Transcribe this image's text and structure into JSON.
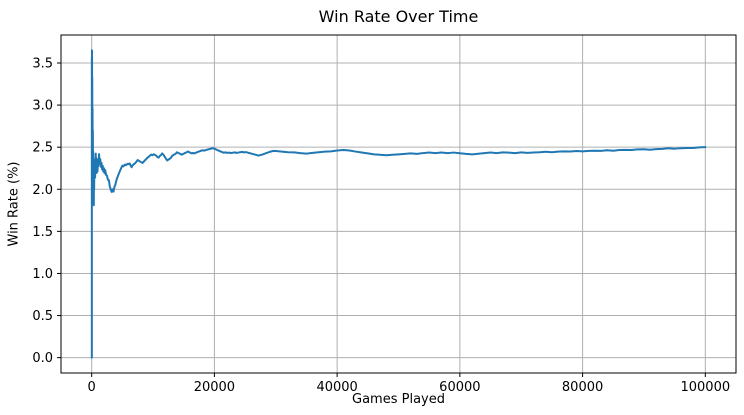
{
  "colors": {
    "line": "#1f77b4",
    "grid": "#b0b0b0",
    "spine": "#000000",
    "text": "#000000",
    "background": "#ffffff"
  },
  "chart_data": {
    "type": "line",
    "title": "Win Rate Over Time",
    "xlabel": "Games Played",
    "ylabel": "Win Rate (%)",
    "grid": true,
    "legend_position": "none",
    "xlim": [
      -5000,
      105000
    ],
    "ylim": [
      -0.1825,
      3.8325
    ],
    "x_ticks": [
      0,
      20000,
      40000,
      60000,
      80000,
      100000
    ],
    "x_tick_labels": [
      "0",
      "20000",
      "40000",
      "60000",
      "80000",
      "100000"
    ],
    "y_ticks": [
      0.0,
      0.5,
      1.0,
      1.5,
      2.0,
      2.5,
      3.0,
      3.5
    ],
    "y_tick_labels": [
      "0.0",
      "0.5",
      "1.0",
      "1.5",
      "2.0",
      "2.5",
      "3.0",
      "3.5"
    ],
    "series": [
      {
        "name": "win_rate",
        "points": [
          [
            0,
            0.0
          ],
          [
            25,
            0.0
          ],
          [
            28,
            3.571
          ],
          [
            40,
            2.5
          ],
          [
            55,
            3.65
          ],
          [
            70,
            2.857
          ],
          [
            90,
            3.333
          ],
          [
            115,
            2.609
          ],
          [
            135,
            2.963
          ],
          [
            160,
            2.5
          ],
          [
            185,
            2.703
          ],
          [
            215,
            2.326
          ],
          [
            245,
            2.449
          ],
          [
            280,
            2.143
          ],
          [
            310,
            2.258
          ],
          [
            345,
            1.81
          ],
          [
            365,
            2.192
          ],
          [
            400,
            2.0
          ],
          [
            430,
            2.326
          ],
          [
            470,
            2.128
          ],
          [
            510,
            2.353
          ],
          [
            560,
            2.143
          ],
          [
            610,
            2.295
          ],
          [
            660,
            2.424
          ],
          [
            710,
            2.254
          ],
          [
            760,
            2.368
          ],
          [
            820,
            2.195
          ],
          [
            880,
            2.273
          ],
          [
            950,
            2.211
          ],
          [
            1020,
            2.353
          ],
          [
            1100,
            2.273
          ],
          [
            1200,
            2.417
          ],
          [
            1300,
            2.308
          ],
          [
            1400,
            2.357
          ],
          [
            1500,
            2.267
          ],
          [
            1600,
            2.313
          ],
          [
            1700,
            2.235
          ],
          [
            1800,
            2.278
          ],
          [
            1900,
            2.211
          ],
          [
            2000,
            2.25
          ],
          [
            2100,
            2.19
          ],
          [
            2200,
            2.227
          ],
          [
            2350,
            2.17
          ],
          [
            2500,
            2.16
          ],
          [
            2650,
            2.113
          ],
          [
            2800,
            2.107
          ],
          [
            2950,
            2.034
          ],
          [
            3100,
            2.0
          ],
          [
            3250,
            1.969
          ],
          [
            3400,
            2.0
          ],
          [
            3550,
            1.972
          ],
          [
            3700,
            2.027
          ],
          [
            3850,
            2.052
          ],
          [
            4000,
            2.1
          ],
          [
            4200,
            2.143
          ],
          [
            4400,
            2.182
          ],
          [
            4600,
            2.217
          ],
          [
            4800,
            2.25
          ],
          [
            5000,
            2.28
          ],
          [
            5150,
            2.272
          ],
          [
            5300,
            2.283
          ],
          [
            5450,
            2.294
          ],
          [
            5600,
            2.286
          ],
          [
            5750,
            2.296
          ],
          [
            5900,
            2.305
          ],
          [
            6050,
            2.298
          ],
          [
            6200,
            2.306
          ],
          [
            6350,
            2.283
          ],
          [
            6500,
            2.262
          ],
          [
            6650,
            2.281
          ],
          [
            6800,
            2.294
          ],
          [
            6950,
            2.302
          ],
          [
            7100,
            2.31
          ],
          [
            7300,
            2.329
          ],
          [
            7500,
            2.347
          ],
          [
            7700,
            2.338
          ],
          [
            7900,
            2.329
          ],
          [
            8100,
            2.321
          ],
          [
            8300,
            2.313
          ],
          [
            8500,
            2.329
          ],
          [
            8700,
            2.345
          ],
          [
            8900,
            2.36
          ],
          [
            9100,
            2.374
          ],
          [
            9300,
            2.387
          ],
          [
            9500,
            2.4
          ],
          [
            9700,
            2.412
          ],
          [
            9900,
            2.404
          ],
          [
            10100,
            2.416
          ],
          [
            10300,
            2.408
          ],
          [
            10500,
            2.4
          ],
          [
            10700,
            2.383
          ],
          [
            10900,
            2.376
          ],
          [
            11100,
            2.396
          ],
          [
            11300,
            2.407
          ],
          [
            11500,
            2.426
          ],
          [
            11700,
            2.41
          ],
          [
            11900,
            2.387
          ],
          [
            12100,
            2.364
          ],
          [
            12300,
            2.342
          ],
          [
            12500,
            2.352
          ],
          [
            12700,
            2.362
          ],
          [
            12900,
            2.372
          ],
          [
            13100,
            2.397
          ],
          [
            13300,
            2.406
          ],
          [
            13500,
            2.415
          ],
          [
            13700,
            2.423
          ],
          [
            13900,
            2.439
          ],
          [
            14100,
            2.432
          ],
          [
            14300,
            2.425
          ],
          [
            14500,
            2.418
          ],
          [
            14700,
            2.411
          ],
          [
            14900,
            2.419
          ],
          [
            15100,
            2.427
          ],
          [
            15300,
            2.434
          ],
          [
            15500,
            2.441
          ],
          [
            15700,
            2.448
          ],
          [
            15900,
            2.44
          ],
          [
            16100,
            2.433
          ],
          [
            16300,
            2.426
          ],
          [
            16500,
            2.432
          ],
          [
            16700,
            2.426
          ],
          [
            16900,
            2.432
          ],
          [
            17100,
            2.438
          ],
          [
            17300,
            2.443
          ],
          [
            17500,
            2.449
          ],
          [
            17700,
            2.454
          ],
          [
            17900,
            2.459
          ],
          [
            18100,
            2.464
          ],
          [
            18300,
            2.459
          ],
          [
            18500,
            2.463
          ],
          [
            18700,
            2.468
          ],
          [
            18900,
            2.472
          ],
          [
            19100,
            2.476
          ],
          [
            19300,
            2.48
          ],
          [
            19500,
            2.484
          ],
          [
            19700,
            2.487
          ],
          [
            20000,
            2.482
          ],
          [
            20300,
            2.472
          ],
          [
            20600,
            2.462
          ],
          [
            20900,
            2.452
          ],
          [
            21200,
            2.443
          ],
          [
            21500,
            2.434
          ],
          [
            21800,
            2.438
          ],
          [
            22100,
            2.432
          ],
          [
            22400,
            2.436
          ],
          [
            22700,
            2.43
          ],
          [
            23000,
            2.434
          ],
          [
            23300,
            2.438
          ],
          [
            23600,
            2.432
          ],
          [
            23900,
            2.436
          ],
          [
            24200,
            2.44
          ],
          [
            24500,
            2.444
          ],
          [
            24800,
            2.438
          ],
          [
            25100,
            2.442
          ],
          [
            25400,
            2.436
          ],
          [
            25700,
            2.43
          ],
          [
            26000,
            2.424
          ],
          [
            26300,
            2.418
          ],
          [
            26600,
            2.412
          ],
          [
            26900,
            2.406
          ],
          [
            27200,
            2.4
          ],
          [
            27500,
            2.406
          ],
          [
            27800,
            2.412
          ],
          [
            28100,
            2.42
          ],
          [
            28400,
            2.428
          ],
          [
            28700,
            2.436
          ],
          [
            29000,
            2.444
          ],
          [
            29300,
            2.45
          ],
          [
            29600,
            2.456
          ],
          [
            30000,
            2.455
          ],
          [
            31000,
            2.447
          ],
          [
            32000,
            2.44
          ],
          [
            33000,
            2.438
          ],
          [
            34000,
            2.43
          ],
          [
            35000,
            2.424
          ],
          [
            36000,
            2.432
          ],
          [
            37000,
            2.44
          ],
          [
            38000,
            2.447
          ],
          [
            39000,
            2.45
          ],
          [
            40000,
            2.46
          ],
          [
            41000,
            2.467
          ],
          [
            42000,
            2.46
          ],
          [
            43000,
            2.448
          ],
          [
            44000,
            2.437
          ],
          [
            45000,
            2.426
          ],
          [
            46000,
            2.415
          ],
          [
            47000,
            2.41
          ],
          [
            48000,
            2.404
          ],
          [
            49000,
            2.41
          ],
          [
            50000,
            2.415
          ],
          [
            51000,
            2.42
          ],
          [
            52000,
            2.427
          ],
          [
            53000,
            2.42
          ],
          [
            54000,
            2.43
          ],
          [
            55000,
            2.437
          ],
          [
            56000,
            2.43
          ],
          [
            57000,
            2.437
          ],
          [
            58000,
            2.43
          ],
          [
            59000,
            2.436
          ],
          [
            60000,
            2.428
          ],
          [
            61000,
            2.42
          ],
          [
            62000,
            2.415
          ],
          [
            63000,
            2.422
          ],
          [
            64000,
            2.43
          ],
          [
            65000,
            2.437
          ],
          [
            66000,
            2.43
          ],
          [
            67000,
            2.438
          ],
          [
            68000,
            2.435
          ],
          [
            69000,
            2.43
          ],
          [
            70000,
            2.438
          ],
          [
            71000,
            2.432
          ],
          [
            72000,
            2.436
          ],
          [
            73000,
            2.44
          ],
          [
            74000,
            2.446
          ],
          [
            75000,
            2.44
          ],
          [
            76000,
            2.447
          ],
          [
            77000,
            2.45
          ],
          [
            78000,
            2.448
          ],
          [
            79000,
            2.455
          ],
          [
            80000,
            2.45
          ],
          [
            81000,
            2.456
          ],
          [
            82000,
            2.458
          ],
          [
            83000,
            2.456
          ],
          [
            84000,
            2.463
          ],
          [
            85000,
            2.458
          ],
          [
            86000,
            2.466
          ],
          [
            87000,
            2.468
          ],
          [
            88000,
            2.467
          ],
          [
            89000,
            2.474
          ],
          [
            90000,
            2.476
          ],
          [
            91000,
            2.47
          ],
          [
            92000,
            2.477
          ],
          [
            93000,
            2.48
          ],
          [
            94000,
            2.487
          ],
          [
            95000,
            2.482
          ],
          [
            96000,
            2.488
          ],
          [
            97000,
            2.49
          ],
          [
            98000,
            2.49
          ],
          [
            99000,
            2.497
          ],
          [
            100000,
            2.5
          ]
        ]
      }
    ]
  }
}
